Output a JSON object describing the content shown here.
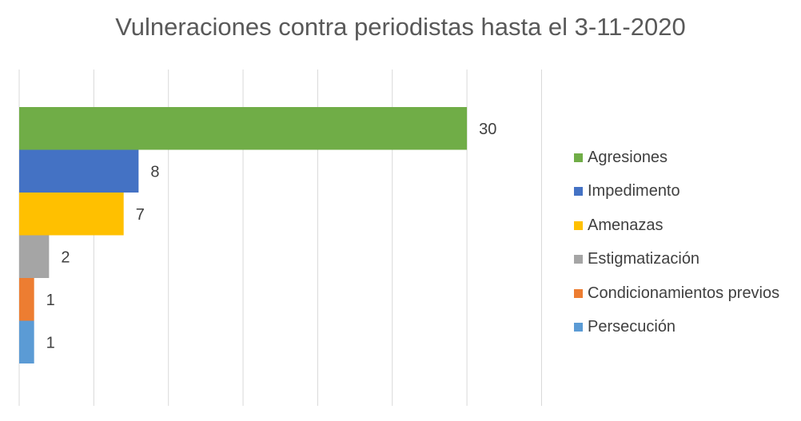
{
  "chart_data": {
    "type": "bar",
    "orientation": "horizontal",
    "title": "Vulneraciones contra periodistas hasta el 3-11-2020",
    "xlabel": "",
    "ylabel": "",
    "xlim": [
      0,
      35
    ],
    "grid": true,
    "legend": "right",
    "series": [
      {
        "name": "Agresiones",
        "value": 30,
        "label": "30",
        "color": "#70AD47"
      },
      {
        "name": "Impedimento",
        "value": 8,
        "label": "8",
        "color": "#4472C4"
      },
      {
        "name": "Amenazas",
        "value": 7,
        "label": "7",
        "color": "#FFC000"
      },
      {
        "name": "Estigmatización",
        "value": 2,
        "label": "2",
        "color": "#A5A5A5"
      },
      {
        "name": "Condicionamientos previos",
        "value": 1,
        "label": "1",
        "color": "#ED7D31"
      },
      {
        "name": "Persecución",
        "value": 1,
        "label": "1",
        "color": "#5B9BD5"
      }
    ]
  }
}
